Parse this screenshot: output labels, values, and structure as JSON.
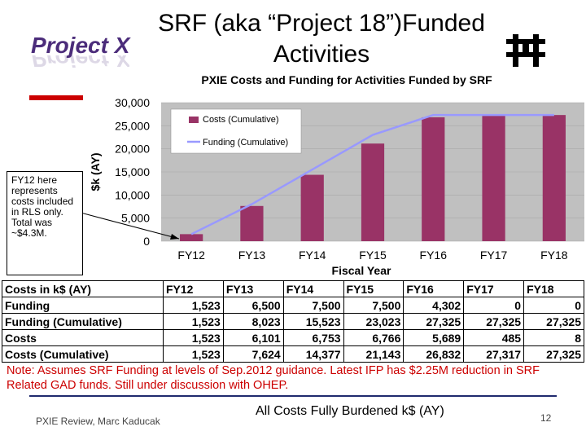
{
  "header": {
    "logo_text": "Project X",
    "title": "SRF (aka “Project 18”)Funded Activities"
  },
  "chart_data": {
    "type": "bar",
    "title": "PXIE Costs and Funding for Activities Funded by SRF",
    "xlabel": "Fiscal Year",
    "ylabel": "$k (AY)",
    "categories": [
      "FY12",
      "FY13",
      "FY14",
      "FY15",
      "FY16",
      "FY17",
      "FY18"
    ],
    "ylim": [
      0,
      30000
    ],
    "yticks": [
      0,
      5000,
      10000,
      15000,
      20000,
      25000,
      30000
    ],
    "ytick_labels": [
      "0",
      "5,000",
      "10,000",
      "15,000",
      "20,000",
      "25,000",
      "30,000"
    ],
    "series": [
      {
        "name": "Costs (Cumulative)",
        "kind": "bar",
        "color": "#993366",
        "values": [
          1523,
          7624,
          14377,
          21143,
          26832,
          27317,
          27325
        ]
      },
      {
        "name": "Funding (Cumulative)",
        "kind": "line",
        "color": "#9999ff",
        "values": [
          1523,
          8023,
          15523,
          23023,
          27325,
          27325,
          27325
        ]
      }
    ],
    "legend": "top-left"
  },
  "callout": {
    "text": "FY12 here represents costs included in RLS only. Total was ~$4.3M."
  },
  "table": {
    "headers": [
      "Costs in k$ (AY)",
      "FY12",
      "FY13",
      "FY14",
      "FY15",
      "FY16",
      "FY17",
      "FY18"
    ],
    "rows": [
      [
        "Funding",
        "1,523",
        "6,500",
        "7,500",
        "7,500",
        "4,302",
        "0",
        "0"
      ],
      [
        "Funding (Cumulative)",
        "1,523",
        "8,023",
        "15,523",
        "23,023",
        "27,325",
        "27,325",
        "27,325"
      ],
      [
        "Costs",
        "1,523",
        "6,101",
        "6,753",
        "6,766",
        "5,689",
        "485",
        "8"
      ],
      [
        "Costs (Cumulative)",
        "1,523",
        "7,624",
        "14,377",
        "21,143",
        "26,832",
        "27,317",
        "27,325"
      ]
    ]
  },
  "note": "Note:  Assumes SRF Funding at levels of Sep.2012 guidance.  Latest IFP has $2.25M reduction in SRF Related GAD funds.  Still under discussion with OHEP.",
  "footer": {
    "left": "PXIE Review, Marc Kaducak",
    "center": "All Costs Fully Burdened k$ (AY)",
    "page_number": "12"
  },
  "colors": {
    "accent": "#cc0000",
    "logo": "#4b2c7a",
    "line": "#1f2a6e"
  }
}
